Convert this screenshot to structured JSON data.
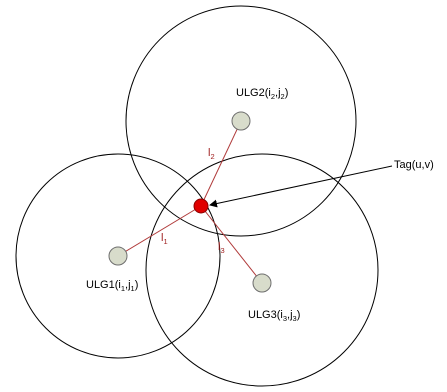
{
  "colors": {
    "circle_stroke": "#000000",
    "line_stroke": "#b03a3a",
    "anchor_fill": "#d8dccb",
    "tag_fill": "#e00000",
    "arrow_stroke": "#000000",
    "distance_label": "#a02020"
  },
  "anchors": {
    "ulg1": {
      "name": "ULG1",
      "open": "(i",
      "sub1": "1",
      "comma": ",j",
      "sub2": "1",
      "close": ")"
    },
    "ulg2": {
      "name": "ULG2",
      "open": "(i",
      "sub1": "2",
      "comma": ",j",
      "sub2": "2",
      "close": ")"
    },
    "ulg3": {
      "name": "ULG3",
      "open": "(i",
      "sub1": "3",
      "comma": ",j",
      "sub2": "3",
      "close": ")"
    }
  },
  "distances": {
    "l1": {
      "letter": "l",
      "sub": "1"
    },
    "l2": {
      "letter": "l",
      "sub": "2"
    },
    "l3": {
      "letter": "l",
      "sub": "3"
    }
  },
  "tag": {
    "label": "Tag(u,v)"
  }
}
